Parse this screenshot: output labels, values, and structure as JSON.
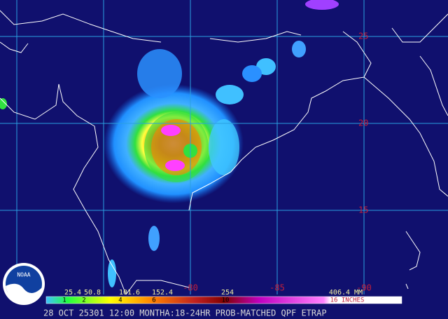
{
  "map": {
    "lat_labels": [
      "25",
      "20",
      "15"
    ],
    "lon_labels": [
      "-80",
      "-85",
      "-90"
    ],
    "legend": {
      "mm_labels": [
        "25.4",
        "50.8",
        "101.6",
        "152.4",
        "254",
        "406.4 MM"
      ],
      "inch_labels": [
        "1",
        "2",
        "4",
        "6",
        "10",
        "16 INCHES"
      ]
    },
    "logo": "NOAA",
    "footer": "28 OCT 25301 12:00 MONTHA:18-24HR PROB-MATCHED QPF ETRAP"
  }
}
